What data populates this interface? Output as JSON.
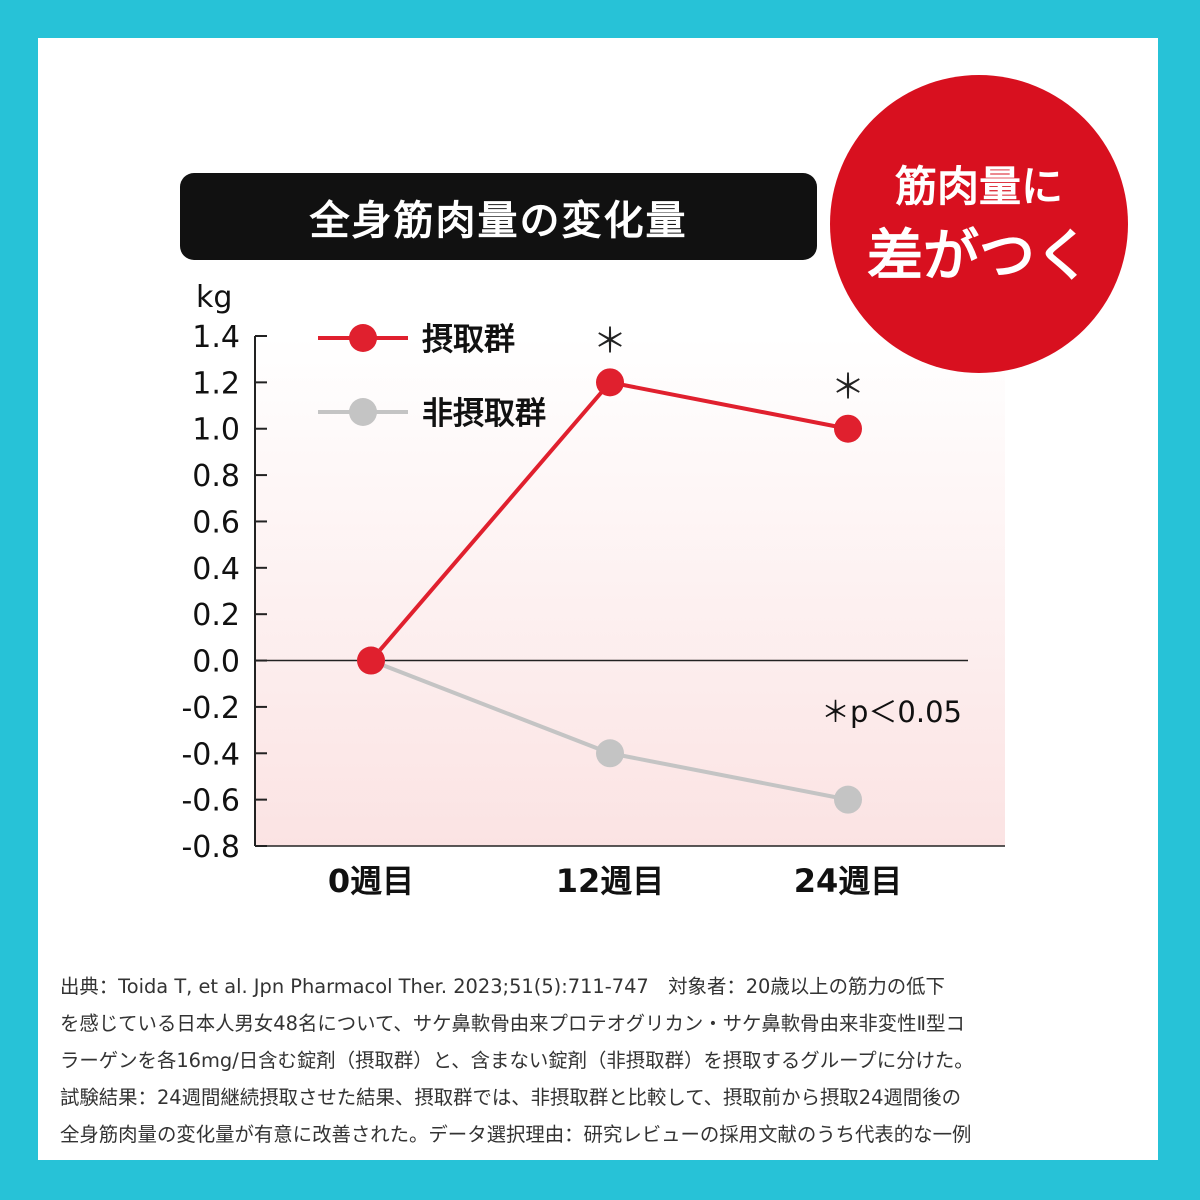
{
  "badge": {
    "line1": "筋肉量に",
    "line2": "差がつく"
  },
  "chart_data": {
    "type": "line",
    "title": "全身筋肉量の変化量",
    "ylabel": "kg",
    "xlabel": "",
    "categories": [
      "0週目",
      "12週目",
      "24週目"
    ],
    "ylim": [
      -0.8,
      1.4
    ],
    "yticks": [
      "1.4",
      "1.2",
      "1.0",
      "0.8",
      "0.6",
      "0.4",
      "0.2",
      "0.0",
      "-0.2",
      "-0.4",
      "-0.6",
      "-0.8"
    ],
    "series": [
      {
        "name": "摂取群",
        "values": [
          0.0,
          1.2,
          1.0
        ],
        "color": "#e0202e",
        "markers": [
          "",
          "＊",
          "＊"
        ]
      },
      {
        "name": "非摂取群",
        "values": [
          0.0,
          -0.4,
          -0.6
        ],
        "color": "#c4c4c4",
        "markers": [
          "",
          "",
          ""
        ]
      }
    ],
    "annotation": "＊p＜0.05",
    "legend_position": "top-left",
    "grid": false
  },
  "footnote": {
    "lines": [
      "出典：Toida T, et al. Jpn Pharmacol Ther. 2023;51(5):711-747　対象者：20歳以上の筋力の低下",
      "を感じている日本人男女48名について、サケ鼻軟骨由来プロテオグリカン・サケ鼻軟骨由来非変性Ⅱ型コ",
      "ラーゲンを各16mg/日含む錠剤（摂取群）と、含まない錠剤（非摂取群）を摂取するグループに分けた。",
      "試験結果：24週間継続摂取させた結果、摂取群では、非摂取群と比較して、摂取前から摂取24週間後の",
      "全身筋肉量の変化量が有意に改善された。データ選択理由：研究レビューの採用文献のうち代表的な一例"
    ]
  }
}
